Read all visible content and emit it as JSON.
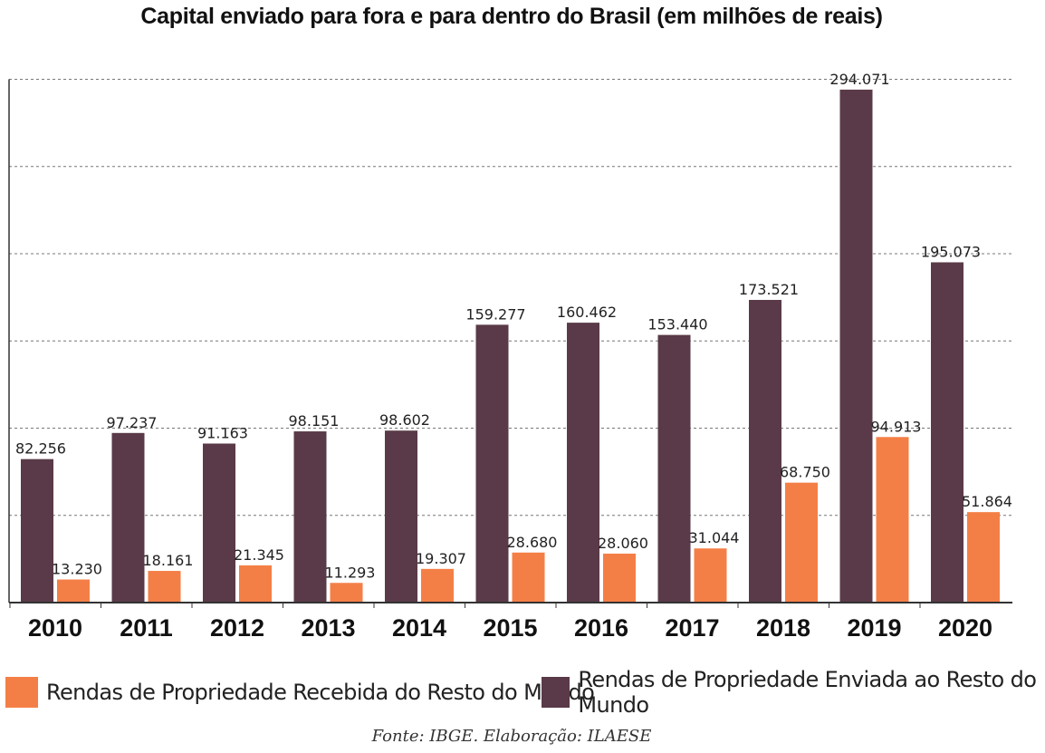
{
  "chart_data": {
    "type": "bar",
    "title": "Capital enviado para fora e para dentro do Brasil (em milhões de reais)",
    "categories": [
      "2010",
      "2011",
      "2012",
      "2013",
      "2014",
      "2015",
      "2016",
      "2017",
      "2018",
      "2019",
      "2020"
    ],
    "series": [
      {
        "name": "Rendas de Propriedade Enviada ao Resto do Mundo",
        "color": "#5a3a48",
        "values": [
          82.256,
          97.237,
          91.163,
          98.151,
          98.602,
          159.277,
          160.462,
          153.44,
          173.521,
          294.071,
          195.073
        ],
        "labels": [
          "82.256",
          "97.237",
          "91.163",
          "98.151",
          "98.602",
          "159.277",
          "160.462",
          "153.440",
          "173.521",
          "294.071",
          "195.073"
        ]
      },
      {
        "name": "Rendas de Propriedade Recebida do Resto do Mundo",
        "color": "#f47f46",
        "values": [
          13.23,
          18.161,
          21.345,
          11.293,
          19.307,
          28.68,
          28.06,
          31.044,
          68.75,
          94.913,
          51.864
        ],
        "labels": [
          "13.230",
          "18.161",
          "21.345",
          "11.293",
          "19.307",
          "28.680",
          "28.060",
          "31.044",
          "68.750",
          "94.913",
          "51.864"
        ]
      }
    ],
    "ylim": [
      0,
      300
    ],
    "grid": true,
    "legend_position": "bottom",
    "source": "Fonte: IBGE. Elaboração: ILAESE"
  }
}
